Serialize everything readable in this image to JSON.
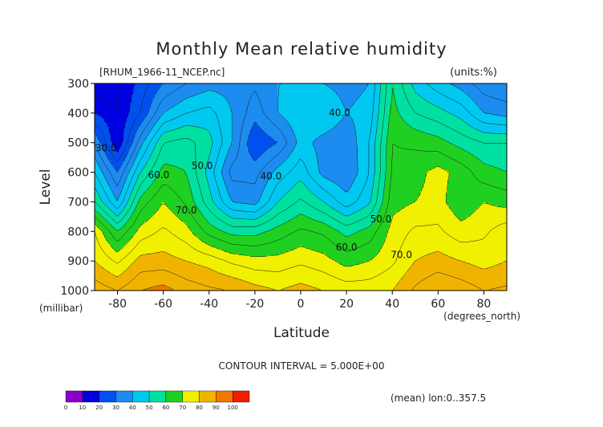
{
  "chart_data": {
    "type": "contour",
    "title": "Monthly Mean relative humidity",
    "file_label": "[RHUM_1966-11_NCEP.nc]",
    "units_label": "(units:%)",
    "ylabel": "Level",
    "y_unit_label": "(millibar)",
    "xlabel": "Latitude",
    "x_unit_label": "(degrees_north)",
    "contour_interval_text": "CONTOUR INTERVAL = 5.000E+00",
    "footer_note": "(mean) lon:0..357.5",
    "xlim": [
      -90,
      90
    ],
    "ylim": [
      1000,
      300
    ],
    "x_ticks": [
      -80,
      -60,
      -40,
      -20,
      0,
      20,
      40,
      60,
      80
    ],
    "y_ticks": [
      300,
      400,
      500,
      600,
      700,
      800,
      900,
      1000
    ],
    "contour_labels": [
      {
        "text": "30.0",
        "lat": -85,
        "lev": 520
      },
      {
        "text": "40.0",
        "lat": 17,
        "lev": 400
      },
      {
        "text": "40.0",
        "lat": -13,
        "lev": 615
      },
      {
        "text": "50.0",
        "lat": -43,
        "lev": 580
      },
      {
        "text": "50.0",
        "lat": 35,
        "lev": 760
      },
      {
        "text": "60.0",
        "lat": -62,
        "lev": 610
      },
      {
        "text": "60.0",
        "lat": 20,
        "lev": 855
      },
      {
        "text": "70.0",
        "lat": -50,
        "lev": 730
      },
      {
        "text": "70.0",
        "lat": 44,
        "lev": 880
      }
    ],
    "contour_interval": 5,
    "colorbar": {
      "levels": [
        0,
        10,
        20,
        30,
        40,
        50,
        60,
        70,
        80,
        90,
        100
      ],
      "colors": [
        "#8b00c8",
        "#0000e0",
        "#0050f0",
        "#1c8cf0",
        "#00c8f0",
        "#00e0a0",
        "#20d020",
        "#f0f000",
        "#f0b400",
        "#f07800",
        "#f01e00"
      ]
    },
    "latitudes": [
      -90,
      -80,
      -70,
      -60,
      -50,
      -40,
      -30,
      -20,
      -10,
      0,
      10,
      20,
      30,
      40,
      50,
      60,
      70,
      80,
      90
    ],
    "levels": [
      300,
      400,
      500,
      600,
      700,
      800,
      900,
      1000
    ],
    "values": [
      [
        10,
        14,
        22,
        30,
        35,
        38,
        38,
        36,
        40,
        40,
        40,
        38,
        40,
        60,
        48,
        42,
        38,
        32,
        30
      ],
      [
        20,
        15,
        25,
        40,
        45,
        47,
        40,
        32,
        40,
        45,
        45,
        40,
        42,
        62,
        55,
        52,
        48,
        40,
        38
      ],
      [
        35,
        15,
        38,
        55,
        57,
        52,
        40,
        25,
        30,
        42,
        38,
        36,
        45,
        65,
        64,
        62,
        58,
        55,
        55
      ],
      [
        45,
        30,
        50,
        62,
        60,
        48,
        33,
        33,
        42,
        48,
        38,
        35,
        45,
        66,
        68,
        72,
        68,
        62,
        60
      ],
      [
        55,
        40,
        62,
        70,
        64,
        52,
        40,
        38,
        50,
        56,
        50,
        42,
        49,
        68,
        70,
        72,
        66,
        70,
        68
      ],
      [
        75,
        60,
        72,
        76,
        72,
        63,
        58,
        58,
        62,
        66,
        64,
        58,
        62,
        72,
        76,
        76,
        72,
        74,
        78
      ],
      [
        80,
        74,
        82,
        82,
        80,
        78,
        74,
        72,
        72,
        74,
        72,
        68,
        70,
        74,
        80,
        82,
        80,
        78,
        80
      ],
      [
        88,
        85,
        90,
        92,
        88,
        86,
        85,
        82,
        80,
        82,
        80,
        78,
        78,
        80,
        86,
        90,
        88,
        85,
        86
      ]
    ]
  }
}
